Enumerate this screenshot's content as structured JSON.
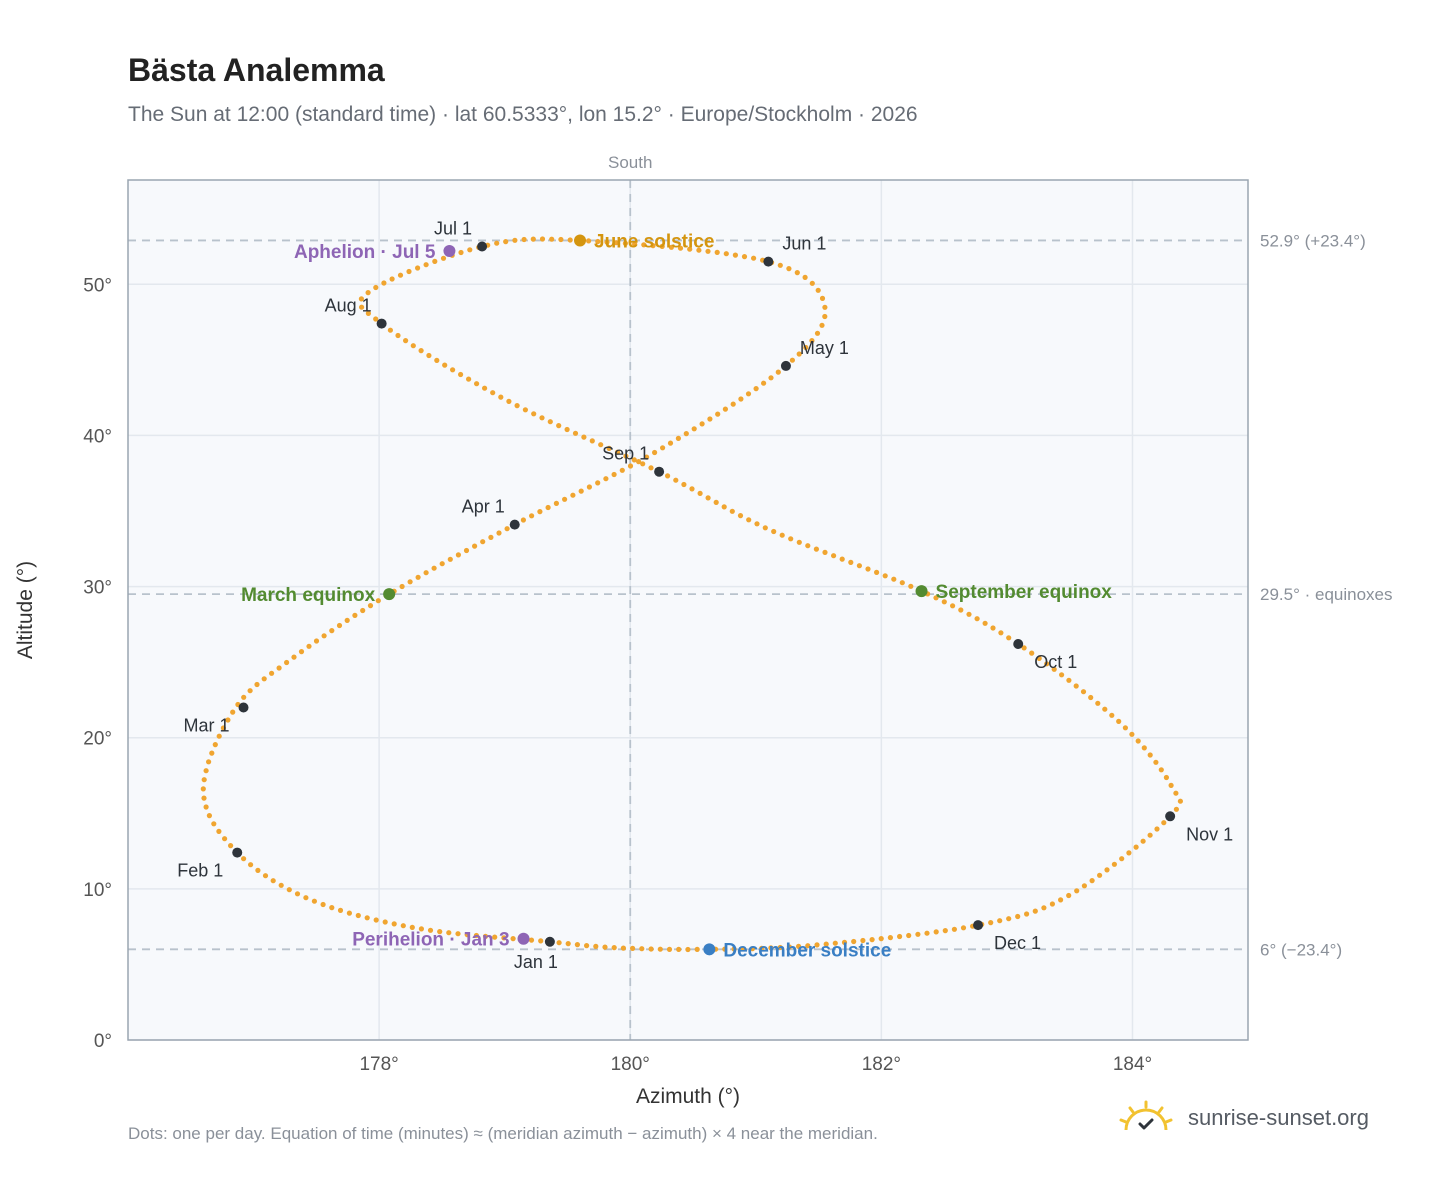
{
  "title": "Bästa Analemma",
  "subtitle": "The Sun at 12:00 (standard time) · lat 60.5333°, lon 15.2° · Europe/Stockholm · 2026",
  "footnote": "Dots: one per day. Equation of time (minutes) ≈ (meridian azimuth − azimuth) × 4 near the meridian.",
  "brand": "sunrise-sunset.org",
  "icons": {
    "brand": "sun-logo-icon"
  },
  "colors": {
    "path": "#f0a530",
    "month_marker": "#2e343b",
    "june_solstice": "#d4950f",
    "december_solstice": "#3a7fc4",
    "equinox": "#538b31",
    "apsis": "#8e65b5",
    "reference_line": "#b8c2cc",
    "plot_background": "#f7f9fc"
  },
  "chart_data": {
    "type": "scatter",
    "title": "Bästa Analemma",
    "xlabel": "Azimuth (°)",
    "ylabel": "Altitude (°)",
    "xlim": [
      176.0,
      184.92
    ],
    "ylim": [
      0,
      56.9
    ],
    "xticks": [
      178,
      180,
      182,
      184
    ],
    "yticks": [
      0,
      10,
      20,
      30,
      40,
      50
    ],
    "xtick_labels": [
      "178°",
      "180°",
      "182°",
      "184°"
    ],
    "ytick_labels": [
      "0°",
      "10°",
      "20°",
      "30°",
      "40°",
      "50°"
    ],
    "grid": true,
    "vertical_reference": {
      "x": 180,
      "label": "South"
    },
    "horizontal_references": [
      {
        "y": 52.9,
        "label": "52.9° (+23.4°)"
      },
      {
        "y": 29.5,
        "label": "29.5° · equinoxes"
      },
      {
        "y": 6.0,
        "label": "6° (−23.4°)"
      }
    ],
    "series": [
      {
        "type": "daily-dots",
        "points": [
          {
            "x": 179.36,
            "y": 6.5
          },
          {
            "x": 178.3,
            "y": 7.4
          },
          {
            "x": 177.45,
            "y": 9.3
          },
          {
            "x": 176.87,
            "y": 12.4
          },
          {
            "x": 176.6,
            "y": 16.5
          },
          {
            "x": 176.85,
            "y": 21.9
          },
          {
            "x": 177.3,
            "y": 25.2
          },
          {
            "x": 178.08,
            "y": 29.5
          },
          {
            "x": 179.08,
            "y": 34.1
          },
          {
            "x": 180.2,
            "y": 38.9
          },
          {
            "x": 181.24,
            "y": 44.6
          },
          {
            "x": 181.55,
            "y": 48.5
          },
          {
            "x": 181.1,
            "y": 51.5
          },
          {
            "x": 179.6,
            "y": 52.9
          },
          {
            "x": 178.82,
            "y": 52.5
          },
          {
            "x": 177.92,
            "y": 49.5
          },
          {
            "x": 178.02,
            "y": 47.4
          },
          {
            "x": 179.0,
            "y": 42.4
          },
          {
            "x": 180.23,
            "y": 37.6
          },
          {
            "x": 181.1,
            "y": 33.8
          },
          {
            "x": 182.32,
            "y": 29.7
          },
          {
            "x": 183.09,
            "y": 26.2
          },
          {
            "x": 183.9,
            "y": 21.0
          },
          {
            "x": 184.31,
            "y": 16.8
          },
          {
            "x": 184.3,
            "y": 14.8
          },
          {
            "x": 183.5,
            "y": 9.6
          },
          {
            "x": 182.77,
            "y": 7.6
          },
          {
            "x": 181.5,
            "y": 6.3
          },
          {
            "x": 180.63,
            "y": 6.0
          },
          {
            "x": 179.9,
            "y": 6.1
          },
          {
            "x": 179.36,
            "y": 6.5
          }
        ]
      }
    ],
    "month_markers": [
      {
        "label": "Jan 1",
        "x": 179.36,
        "y": 6.5,
        "anchor": "below"
      },
      {
        "label": "Feb 1",
        "x": 176.87,
        "y": 12.4,
        "anchor": "below-left"
      },
      {
        "label": "Mar 1",
        "x": 176.92,
        "y": 22.0,
        "anchor": "below-left"
      },
      {
        "label": "Apr 1",
        "x": 179.08,
        "y": 34.1,
        "anchor": "above-left"
      },
      {
        "label": "May 1",
        "x": 181.24,
        "y": 44.6,
        "anchor": "above-right"
      },
      {
        "label": "Jun 1",
        "x": 181.1,
        "y": 51.5,
        "anchor": "above-right"
      },
      {
        "label": "Jul 1",
        "x": 178.82,
        "y": 52.5,
        "anchor": "above-left"
      },
      {
        "label": "Aug 1",
        "x": 178.02,
        "y": 47.4,
        "anchor": "above-left"
      },
      {
        "label": "Sep 1",
        "x": 180.23,
        "y": 37.6,
        "anchor": "above-left"
      },
      {
        "label": "Oct 1",
        "x": 183.09,
        "y": 26.2,
        "anchor": "below-right"
      },
      {
        "label": "Nov 1",
        "x": 184.3,
        "y": 14.8,
        "anchor": "below-right"
      },
      {
        "label": "Dec 1",
        "x": 182.77,
        "y": 7.6,
        "anchor": "below-right"
      }
    ],
    "events": [
      {
        "label": "June solstice",
        "x": 179.6,
        "y": 52.9,
        "color": "#d4950f",
        "anchor": "right"
      },
      {
        "label": "December solstice",
        "x": 180.63,
        "y": 6.0,
        "color": "#3a7fc4",
        "anchor": "right"
      },
      {
        "label": "March equinox",
        "x": 178.08,
        "y": 29.5,
        "color": "#538b31",
        "anchor": "left"
      },
      {
        "label": "September equinox",
        "x": 182.32,
        "y": 29.7,
        "color": "#538b31",
        "anchor": "right"
      },
      {
        "label": "Aphelion · Jul 5",
        "x": 178.56,
        "y": 52.2,
        "color": "#8e65b5",
        "anchor": "left"
      },
      {
        "label": "Perihelion · Jan 3",
        "x": 179.15,
        "y": 6.7,
        "color": "#8e65b5",
        "anchor": "left"
      }
    ]
  }
}
